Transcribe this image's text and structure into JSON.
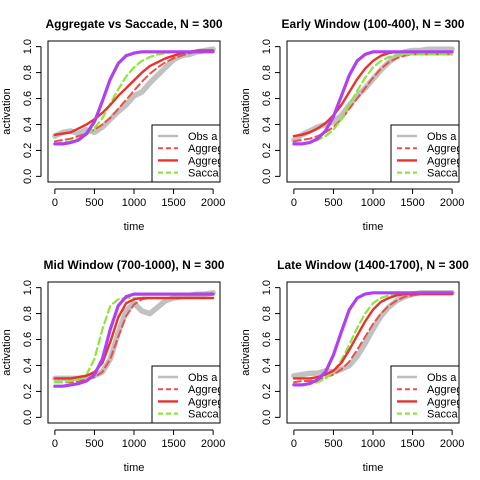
{
  "colors": {
    "observed": "#bebebe",
    "aggregate_dashed": "#e8524a",
    "aggregate_solid": "#e8322e",
    "saccade": "#8ee63c",
    "window_fit": "#b040f0",
    "axis": "#000000"
  },
  "chart_data": [
    {
      "type": "line",
      "title": "Aggregate vs Saccade, N = 300",
      "xlabel": "time",
      "ylabel": "activation",
      "xlim": [
        0,
        2000
      ],
      "ylim": [
        0,
        1
      ],
      "xticks": [
        "0",
        "500",
        "1000",
        "1500",
        "2000"
      ],
      "yticks": [
        "0.0",
        "0.2",
        "0.4",
        "0.6",
        "0.8",
        "1.0"
      ],
      "legend_position": "bottom-right",
      "legend_entries": [
        "Obs a",
        "Aggreg",
        "Aggreg",
        "Sacca"
      ],
      "series": [
        {
          "style": "observed",
          "x": [
            0,
            100,
            200,
            300,
            400,
            500,
            600,
            700,
            800,
            900,
            1000,
            1100,
            1200,
            1300,
            1400,
            1500,
            1600,
            1700,
            1800,
            1900,
            2000
          ],
          "y": [
            0.31,
            0.34,
            0.35,
            0.33,
            0.36,
            0.34,
            0.38,
            0.44,
            0.5,
            0.55,
            0.62,
            0.65,
            0.72,
            0.78,
            0.84,
            0.9,
            0.93,
            0.94,
            0.96,
            0.97,
            0.98
          ]
        },
        {
          "style": "aggregate_dashed",
          "x": [
            0,
            100,
            200,
            300,
            400,
            500,
            600,
            700,
            800,
            900,
            1000,
            1100,
            1200,
            1300,
            1400,
            1500,
            1600,
            1700,
            1800,
            1900,
            2000
          ],
          "y": [
            0.27,
            0.28,
            0.29,
            0.31,
            0.33,
            0.36,
            0.4,
            0.45,
            0.52,
            0.59,
            0.66,
            0.73,
            0.79,
            0.84,
            0.88,
            0.91,
            0.93,
            0.95,
            0.96,
            0.97,
            0.97
          ]
        },
        {
          "style": "aggregate_solid",
          "x": [
            0,
            100,
            200,
            300,
            400,
            500,
            600,
            700,
            800,
            900,
            1000,
            1100,
            1200,
            1300,
            1400,
            1500,
            1600,
            1700,
            1800,
            1900,
            2000
          ],
          "y": [
            0.32,
            0.33,
            0.34,
            0.37,
            0.4,
            0.44,
            0.49,
            0.55,
            0.62,
            0.68,
            0.74,
            0.8,
            0.85,
            0.88,
            0.91,
            0.93,
            0.95,
            0.96,
            0.97,
            0.97,
            0.97
          ]
        },
        {
          "style": "saccade",
          "x": [
            0,
            100,
            200,
            300,
            400,
            500,
            600,
            700,
            800,
            900,
            1000,
            1100,
            1200,
            1300,
            1400,
            1500,
            1600,
            1700,
            1800,
            1900,
            2000
          ],
          "y": [
            0.25,
            0.26,
            0.27,
            0.29,
            0.32,
            0.37,
            0.45,
            0.56,
            0.67,
            0.77,
            0.84,
            0.89,
            0.92,
            0.94,
            0.95,
            0.96,
            0.96,
            0.96,
            0.96,
            0.96,
            0.96
          ]
        },
        {
          "style": "window_fit",
          "x": [
            0,
            100,
            200,
            300,
            400,
            500,
            600,
            700,
            800,
            900,
            1000,
            1100,
            1200,
            1300,
            1400,
            1500,
            1600,
            1700,
            1800,
            1900,
            2000
          ],
          "y": [
            0.25,
            0.25,
            0.26,
            0.28,
            0.33,
            0.42,
            0.58,
            0.75,
            0.87,
            0.93,
            0.95,
            0.96,
            0.96,
            0.96,
            0.96,
            0.96,
            0.96,
            0.96,
            0.96,
            0.96,
            0.96
          ]
        }
      ]
    },
    {
      "type": "line",
      "title": "Early Window (100-400), N = 300",
      "xlabel": "time",
      "ylabel": "activation",
      "xlim": [
        0,
        2000
      ],
      "ylim": [
        0,
        1
      ],
      "xticks": [
        "0",
        "500",
        "1000",
        "1500",
        "2000"
      ],
      "yticks": [
        "0.0",
        "0.2",
        "0.4",
        "0.6",
        "0.8",
        "1.0"
      ],
      "legend_position": "bottom-right",
      "legend_entries": [
        "Obs a",
        "Aggreg",
        "Aggreg",
        "Sacca"
      ],
      "series": [
        {
          "style": "observed",
          "x": [
            0,
            100,
            200,
            300,
            400,
            500,
            600,
            700,
            800,
            900,
            1000,
            1100,
            1200,
            1300,
            1400,
            1500,
            1600,
            1700,
            1800,
            1900,
            2000
          ],
          "y": [
            0.28,
            0.32,
            0.35,
            0.38,
            0.4,
            0.42,
            0.47,
            0.55,
            0.62,
            0.68,
            0.75,
            0.82,
            0.88,
            0.93,
            0.96,
            0.97,
            0.97,
            0.98,
            0.98,
            0.98,
            0.98
          ]
        },
        {
          "style": "aggregate_dashed",
          "x": [
            0,
            100,
            200,
            300,
            400,
            500,
            600,
            700,
            800,
            900,
            1000,
            1100,
            1200,
            1300,
            1400,
            1500,
            1600,
            1700,
            1800,
            1900,
            2000
          ],
          "y": [
            0.27,
            0.28,
            0.29,
            0.31,
            0.34,
            0.38,
            0.44,
            0.52,
            0.6,
            0.68,
            0.76,
            0.83,
            0.88,
            0.91,
            0.93,
            0.94,
            0.94,
            0.94,
            0.94,
            0.94,
            0.94
          ]
        },
        {
          "style": "aggregate_solid",
          "x": [
            0,
            100,
            200,
            300,
            400,
            500,
            600,
            700,
            800,
            900,
            1000,
            1100,
            1200,
            1300,
            1400,
            1500,
            1600,
            1700,
            1800,
            1900,
            2000
          ],
          "y": [
            0.31,
            0.32,
            0.34,
            0.37,
            0.41,
            0.47,
            0.55,
            0.65,
            0.75,
            0.83,
            0.89,
            0.93,
            0.95,
            0.96,
            0.96,
            0.96,
            0.96,
            0.96,
            0.96,
            0.96,
            0.96
          ]
        },
        {
          "style": "saccade",
          "x": [
            0,
            100,
            200,
            300,
            400,
            500,
            600,
            700,
            800,
            900,
            1000,
            1100,
            1200,
            1300,
            1400,
            1500,
            1600,
            1700,
            1800,
            1900,
            2000
          ],
          "y": [
            0.25,
            0.25,
            0.26,
            0.28,
            0.31,
            0.36,
            0.44,
            0.55,
            0.66,
            0.76,
            0.84,
            0.89,
            0.92,
            0.93,
            0.94,
            0.94,
            0.94,
            0.94,
            0.94,
            0.94,
            0.94
          ]
        },
        {
          "style": "window_fit",
          "x": [
            0,
            100,
            200,
            300,
            400,
            500,
            600,
            700,
            800,
            900,
            1000,
            1100,
            1200,
            1300,
            1400,
            1500,
            1600,
            1700,
            1800,
            1900,
            2000
          ],
          "y": [
            0.25,
            0.25,
            0.26,
            0.29,
            0.35,
            0.46,
            0.62,
            0.78,
            0.89,
            0.94,
            0.96,
            0.96,
            0.96,
            0.96,
            0.96,
            0.96,
            0.96,
            0.96,
            0.96,
            0.96,
            0.96
          ]
        }
      ]
    },
    {
      "type": "line",
      "title": "Mid Window (700-1000), N = 300",
      "xlabel": "time",
      "ylabel": "activation",
      "xlim": [
        0,
        2000
      ],
      "ylim": [
        0,
        1
      ],
      "xticks": [
        "0",
        "500",
        "1000",
        "1500",
        "2000"
      ],
      "yticks": [
        "0.0",
        "0.2",
        "0.4",
        "0.6",
        "0.8",
        "1.0"
      ],
      "legend_position": "bottom-right",
      "legend_entries": [
        "Obs a",
        "Aggreg",
        "Aggreg",
        "Sacca"
      ],
      "series": [
        {
          "style": "observed",
          "x": [
            0,
            100,
            200,
            300,
            400,
            500,
            600,
            700,
            800,
            900,
            1000,
            1100,
            1200,
            1300,
            1400,
            1500,
            1600,
            1700,
            1800,
            1900,
            2000
          ],
          "y": [
            0.3,
            0.3,
            0.3,
            0.3,
            0.31,
            0.32,
            0.35,
            0.45,
            0.65,
            0.82,
            0.88,
            0.82,
            0.8,
            0.85,
            0.9,
            0.92,
            0.93,
            0.94,
            0.95,
            0.95,
            0.96
          ]
        },
        {
          "style": "aggregate_dashed",
          "x": [
            0,
            100,
            200,
            300,
            400,
            500,
            600,
            700,
            800,
            900,
            1000,
            1100,
            1200,
            1300,
            1400,
            1500,
            1600,
            1700,
            1800,
            1900,
            2000
          ],
          "y": [
            0.27,
            0.27,
            0.27,
            0.28,
            0.29,
            0.31,
            0.35,
            0.45,
            0.62,
            0.78,
            0.87,
            0.91,
            0.92,
            0.92,
            0.92,
            0.92,
            0.92,
            0.92,
            0.92,
            0.92,
            0.92
          ]
        },
        {
          "style": "aggregate_solid",
          "x": [
            0,
            100,
            200,
            300,
            400,
            500,
            600,
            700,
            800,
            900,
            1000,
            1100,
            1200,
            1300,
            1400,
            1500,
            1600,
            1700,
            1800,
            1900,
            2000
          ],
          "y": [
            0.3,
            0.3,
            0.3,
            0.31,
            0.32,
            0.35,
            0.42,
            0.58,
            0.77,
            0.88,
            0.91,
            0.92,
            0.92,
            0.92,
            0.92,
            0.92,
            0.92,
            0.92,
            0.92,
            0.92,
            0.92
          ]
        },
        {
          "style": "saccade",
          "x": [
            0,
            100,
            200,
            300,
            400,
            500,
            600,
            700,
            800,
            900,
            1000,
            1100,
            1200,
            1300,
            1400,
            1500,
            1600,
            1700,
            1800,
            1900,
            2000
          ],
          "y": [
            0.27,
            0.27,
            0.28,
            0.29,
            0.33,
            0.45,
            0.68,
            0.86,
            0.91,
            0.92,
            0.92,
            0.92,
            0.92,
            0.92,
            0.92,
            0.92,
            0.92,
            0.92,
            0.92,
            0.92,
            0.92
          ]
        },
        {
          "style": "window_fit",
          "x": [
            0,
            100,
            200,
            300,
            400,
            500,
            600,
            700,
            800,
            900,
            1000,
            1100,
            1200,
            1300,
            1400,
            1500,
            1600,
            1700,
            1800,
            1900,
            2000
          ],
          "y": [
            0.24,
            0.24,
            0.25,
            0.26,
            0.28,
            0.33,
            0.45,
            0.68,
            0.86,
            0.93,
            0.95,
            0.95,
            0.95,
            0.95,
            0.95,
            0.95,
            0.95,
            0.95,
            0.95,
            0.95,
            0.95
          ]
        }
      ]
    },
    {
      "type": "line",
      "title": "Late Window (1400-1700), N = 300",
      "xlabel": "time",
      "ylabel": "activation",
      "xlim": [
        0,
        2000
      ],
      "ylim": [
        0,
        1
      ],
      "xticks": [
        "0",
        "500",
        "1000",
        "1500",
        "2000"
      ],
      "yticks": [
        "0.0",
        "0.2",
        "0.4",
        "0.6",
        "0.8",
        "1.0"
      ],
      "legend_position": "bottom-right",
      "legend_entries": [
        "Obs a",
        "Aggreg",
        "Aggreg",
        "Sacca"
      ],
      "series": [
        {
          "style": "observed",
          "x": [
            0,
            100,
            200,
            300,
            400,
            500,
            600,
            700,
            800,
            900,
            1000,
            1100,
            1200,
            1300,
            1400,
            1500,
            1600,
            1700,
            1800,
            1900,
            2000
          ],
          "y": [
            0.32,
            0.33,
            0.34,
            0.34,
            0.36,
            0.35,
            0.37,
            0.4,
            0.47,
            0.57,
            0.68,
            0.78,
            0.85,
            0.9,
            0.93,
            0.95,
            0.96,
            0.96,
            0.96,
            0.96,
            0.96
          ]
        },
        {
          "style": "aggregate_dashed",
          "x": [
            0,
            100,
            200,
            300,
            400,
            500,
            600,
            700,
            800,
            900,
            1000,
            1100,
            1200,
            1300,
            1400,
            1500,
            1600,
            1700,
            1800,
            1900,
            2000
          ],
          "y": [
            0.27,
            0.28,
            0.28,
            0.29,
            0.31,
            0.33,
            0.37,
            0.43,
            0.52,
            0.62,
            0.72,
            0.8,
            0.86,
            0.9,
            0.93,
            0.94,
            0.95,
            0.95,
            0.95,
            0.95,
            0.95
          ]
        },
        {
          "style": "aggregate_solid",
          "x": [
            0,
            100,
            200,
            300,
            400,
            500,
            600,
            700,
            800,
            900,
            1000,
            1100,
            1200,
            1300,
            1400,
            1500,
            1600,
            1700,
            1800,
            1900,
            2000
          ],
          "y": [
            0.3,
            0.3,
            0.3,
            0.31,
            0.33,
            0.36,
            0.42,
            0.52,
            0.63,
            0.74,
            0.83,
            0.89,
            0.92,
            0.94,
            0.95,
            0.95,
            0.95,
            0.95,
            0.95,
            0.95,
            0.95
          ]
        },
        {
          "style": "saccade",
          "x": [
            0,
            100,
            200,
            300,
            400,
            500,
            600,
            700,
            800,
            900,
            1000,
            1100,
            1200,
            1300,
            1400,
            1500,
            1600,
            1700,
            1800,
            1900,
            2000
          ],
          "y": [
            0.25,
            0.25,
            0.26,
            0.27,
            0.3,
            0.35,
            0.44,
            0.56,
            0.69,
            0.8,
            0.88,
            0.92,
            0.94,
            0.95,
            0.95,
            0.95,
            0.95,
            0.95,
            0.95,
            0.95,
            0.95
          ]
        },
        {
          "style": "window_fit",
          "x": [
            0,
            100,
            200,
            300,
            400,
            500,
            600,
            700,
            800,
            900,
            1000,
            1100,
            1200,
            1300,
            1400,
            1500,
            1600,
            1700,
            1800,
            1900,
            2000
          ],
          "y": [
            0.25,
            0.25,
            0.26,
            0.29,
            0.35,
            0.48,
            0.66,
            0.83,
            0.92,
            0.95,
            0.96,
            0.96,
            0.96,
            0.96,
            0.96,
            0.96,
            0.96,
            0.96,
            0.96,
            0.96,
            0.96
          ]
        }
      ]
    }
  ]
}
